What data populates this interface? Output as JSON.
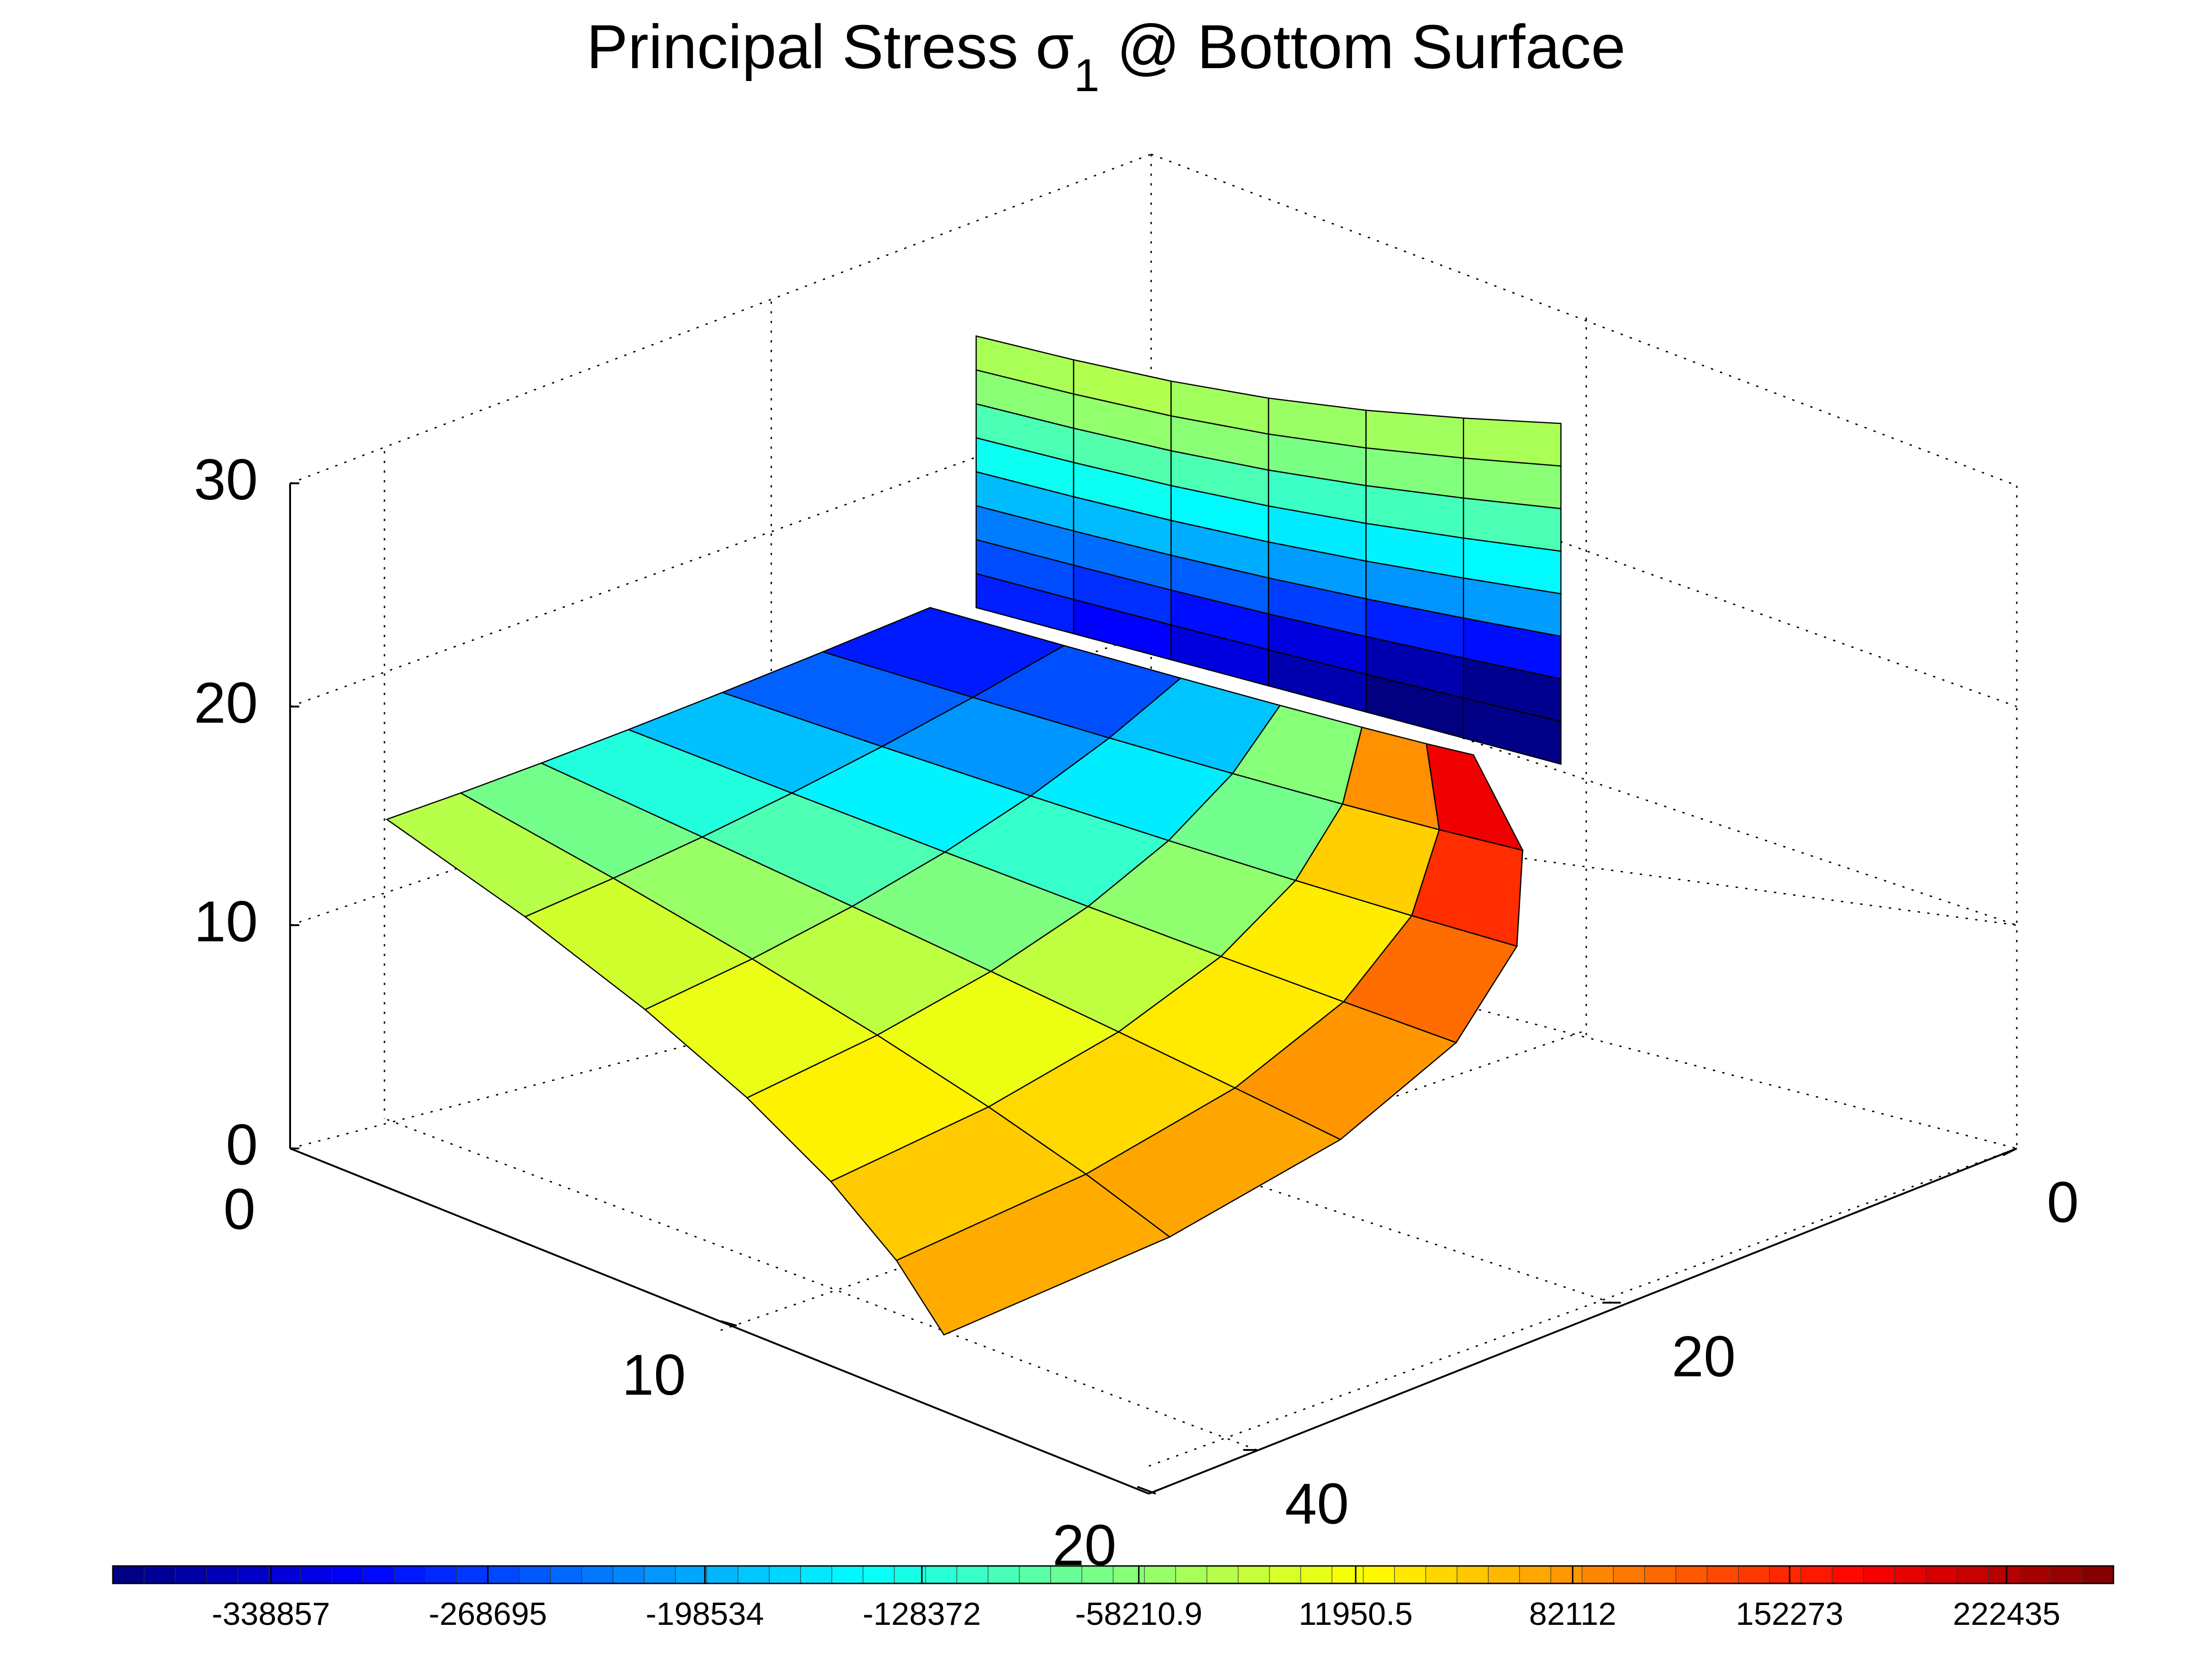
{
  "chart_data": {
    "type": "surface",
    "title": "Principal Stress σ1 @ Bottom Surface",
    "title_main": "Principal Stress σ",
    "title_sub": "1",
    "title_suffix": " @ Bottom Surface",
    "xlabel": "",
    "ylabel": "",
    "zlabel": "",
    "x_axis": {
      "ticks": [
        0,
        10,
        20
      ],
      "tick_labels": [
        "0",
        "10",
        "20"
      ],
      "lim": [
        0,
        20
      ]
    },
    "y_axis": {
      "ticks": [
        0,
        20,
        40
      ],
      "tick_labels": [
        "0",
        "20",
        "40"
      ],
      "lim": [
        0,
        50
      ]
    },
    "z_axis": {
      "ticks": [
        0,
        10,
        20,
        30
      ],
      "tick_labels": [
        "0",
        "10",
        "20",
        "30"
      ],
      "lim": [
        0,
        30
      ]
    },
    "grid": true,
    "colormap": "jet",
    "colorbar": {
      "placement": "bottom",
      "lim": [
        -390000,
        257000
      ],
      "ticks": [
        -338857,
        -268695,
        -198534,
        -128372,
        -58210.9,
        11950.5,
        82112,
        152273,
        222435
      ],
      "tick_labels": [
        "-338857",
        "-268695",
        "-198534",
        "-128372",
        "-58210.9",
        "11950.5",
        "82112",
        "152273",
        "222435"
      ]
    },
    "surfaces": [
      {
        "name": "",
        "description_note": "",
        "base_stress": [
          [
            -20000,
            -60000,
            -110000,
            -170000,
            -235000,
            -285000,
            -320000
          ],
          [
            -5000,
            -40000,
            -85000,
            -140000,
            -205000,
            -265000,
            -300000
          ],
          [
            5000,
            -20000,
            -60000,
            -110000,
            -165000,
            -220000,
            -250000
          ],
          [
            20000,
            0,
            -30000,
            -70000,
            -110000,
            -140000,
            -130000
          ],
          [
            40000,
            30000,
            10000,
            -15000,
            -30000,
            -20000,
            40000
          ],
          [
            60000,
            60000,
            55000,
            60000,
            90000,
            140000,
            180000
          ],
          [
            70000,
            80000,
            90000,
            120000,
            160000,
            200000,
            222000
          ]
        ],
        "wall_stress": [
          [
            -40000,
            -35000,
            -45000,
            -50000,
            -45000,
            -40000
          ],
          [
            -60000,
            -55000,
            -60000,
            -70000,
            -65000,
            -60000
          ],
          [
            -100000,
            -95000,
            -100000,
            -110000,
            -105000,
            -100000
          ],
          [
            -140000,
            -140000,
            -150000,
            -160000,
            -155000,
            -150000
          ],
          [
            -190000,
            -190000,
            -200000,
            -210000,
            -215000,
            -210000
          ],
          [
            -230000,
            -240000,
            -250000,
            -270000,
            -290000,
            -300000
          ],
          [
            -260000,
            -280000,
            -300000,
            -330000,
            -360000,
            -380000
          ],
          [
            -290000,
            -310000,
            -330000,
            -360000,
            -390000,
            -385000
          ]
        ]
      }
    ]
  }
}
